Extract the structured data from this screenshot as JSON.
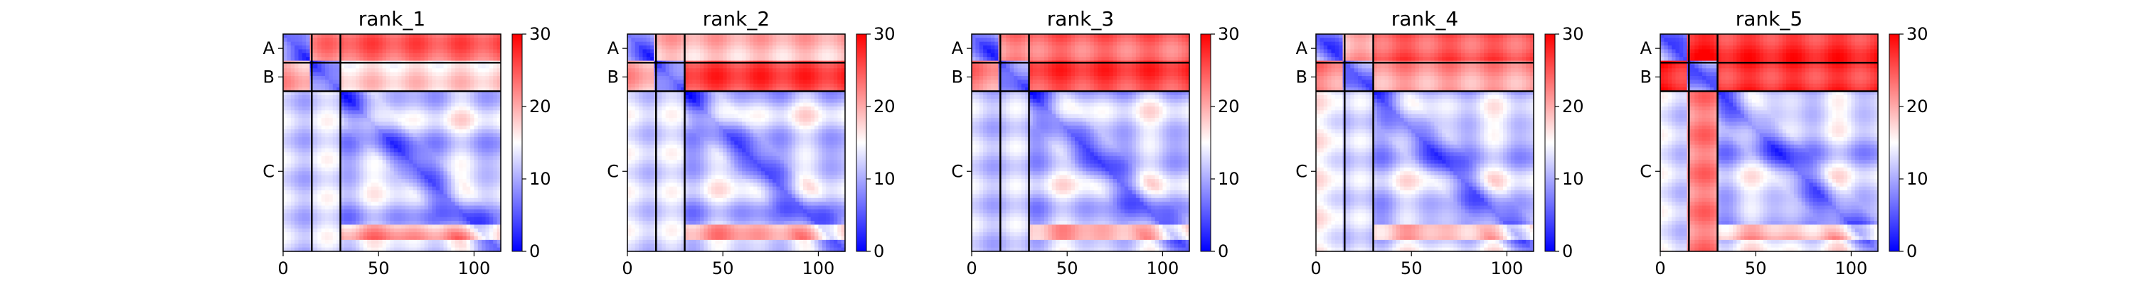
{
  "chart_data": [
    {
      "type": "heatmap",
      "title": "rank_1",
      "x_ticks": [
        0,
        50,
        100
      ],
      "x_range": [
        0,
        114
      ],
      "y_range": [
        0,
        114
      ],
      "chain_labels": [
        "A",
        "B",
        "C"
      ],
      "chain_boundaries": [
        15,
        30
      ],
      "colorbar": {
        "ticks": [
          0,
          10,
          20,
          30
        ],
        "range": [
          0,
          30
        ],
        "colormap": "bwr"
      },
      "block_pae": {
        "AA": 4,
        "AB": 22,
        "AC": 24,
        "BA": 20,
        "BB": 4,
        "BC": 17,
        "CA": 12,
        "CB": 13,
        "CC": 5
      }
    },
    {
      "type": "heatmap",
      "title": "rank_2",
      "x_ticks": [
        0,
        50,
        100
      ],
      "x_range": [
        0,
        114
      ],
      "y_range": [
        0,
        114
      ],
      "chain_labels": [
        "A",
        "B",
        "C"
      ],
      "chain_boundaries": [
        15,
        30
      ],
      "colorbar": {
        "ticks": [
          0,
          10,
          20,
          30
        ],
        "range": [
          0,
          30
        ],
        "colormap": "bwr"
      },
      "block_pae": {
        "AA": 4,
        "AB": 19,
        "AC": 19,
        "BA": 20,
        "BB": 4,
        "BC": 26,
        "CA": 13,
        "CB": 13,
        "CC": 5
      }
    },
    {
      "type": "heatmap",
      "title": "rank_3",
      "x_ticks": [
        0,
        50,
        100
      ],
      "x_range": [
        0,
        114
      ],
      "y_range": [
        0,
        114
      ],
      "chain_labels": [
        "A",
        "B",
        "C"
      ],
      "chain_boundaries": [
        15,
        30
      ],
      "colorbar": {
        "ticks": [
          0,
          10,
          20,
          30
        ],
        "range": [
          0,
          30
        ],
        "colormap": "bwr"
      },
      "block_pae": {
        "AA": 4,
        "AB": 22,
        "AC": 24,
        "BA": 22,
        "BB": 4,
        "BC": 26,
        "CA": 12,
        "CB": 12,
        "CC": 5
      }
    },
    {
      "type": "heatmap",
      "title": "rank_4",
      "x_ticks": [
        0,
        50,
        100
      ],
      "x_range": [
        0,
        114
      ],
      "y_range": [
        0,
        114
      ],
      "chain_labels": [
        "A",
        "B",
        "C"
      ],
      "chain_boundaries": [
        15,
        30
      ],
      "colorbar": {
        "ticks": [
          0,
          10,
          20,
          30
        ],
        "range": [
          0,
          30
        ],
        "colormap": "bwr"
      },
      "block_pae": {
        "AA": 4,
        "AB": 20,
        "AC": 25,
        "BA": 22,
        "BB": 4,
        "BC": 21,
        "CA": 15,
        "CB": 12,
        "CC": 5
      }
    },
    {
      "type": "heatmap",
      "title": "rank_5",
      "x_ticks": [
        0,
        50,
        100
      ],
      "x_range": [
        0,
        114
      ],
      "y_range": [
        0,
        114
      ],
      "chain_labels": [
        "A",
        "B",
        "C"
      ],
      "chain_boundaries": [
        15,
        30
      ],
      "colorbar": {
        "ticks": [
          0,
          10,
          20,
          30
        ],
        "range": [
          0,
          30
        ],
        "colormap": "bwr"
      },
      "block_pae": {
        "AA": 4,
        "AB": 28,
        "AC": 27,
        "BA": 28,
        "BB": 4,
        "BC": 27,
        "CA": 13,
        "CB": 22,
        "CC": 5
      }
    }
  ]
}
